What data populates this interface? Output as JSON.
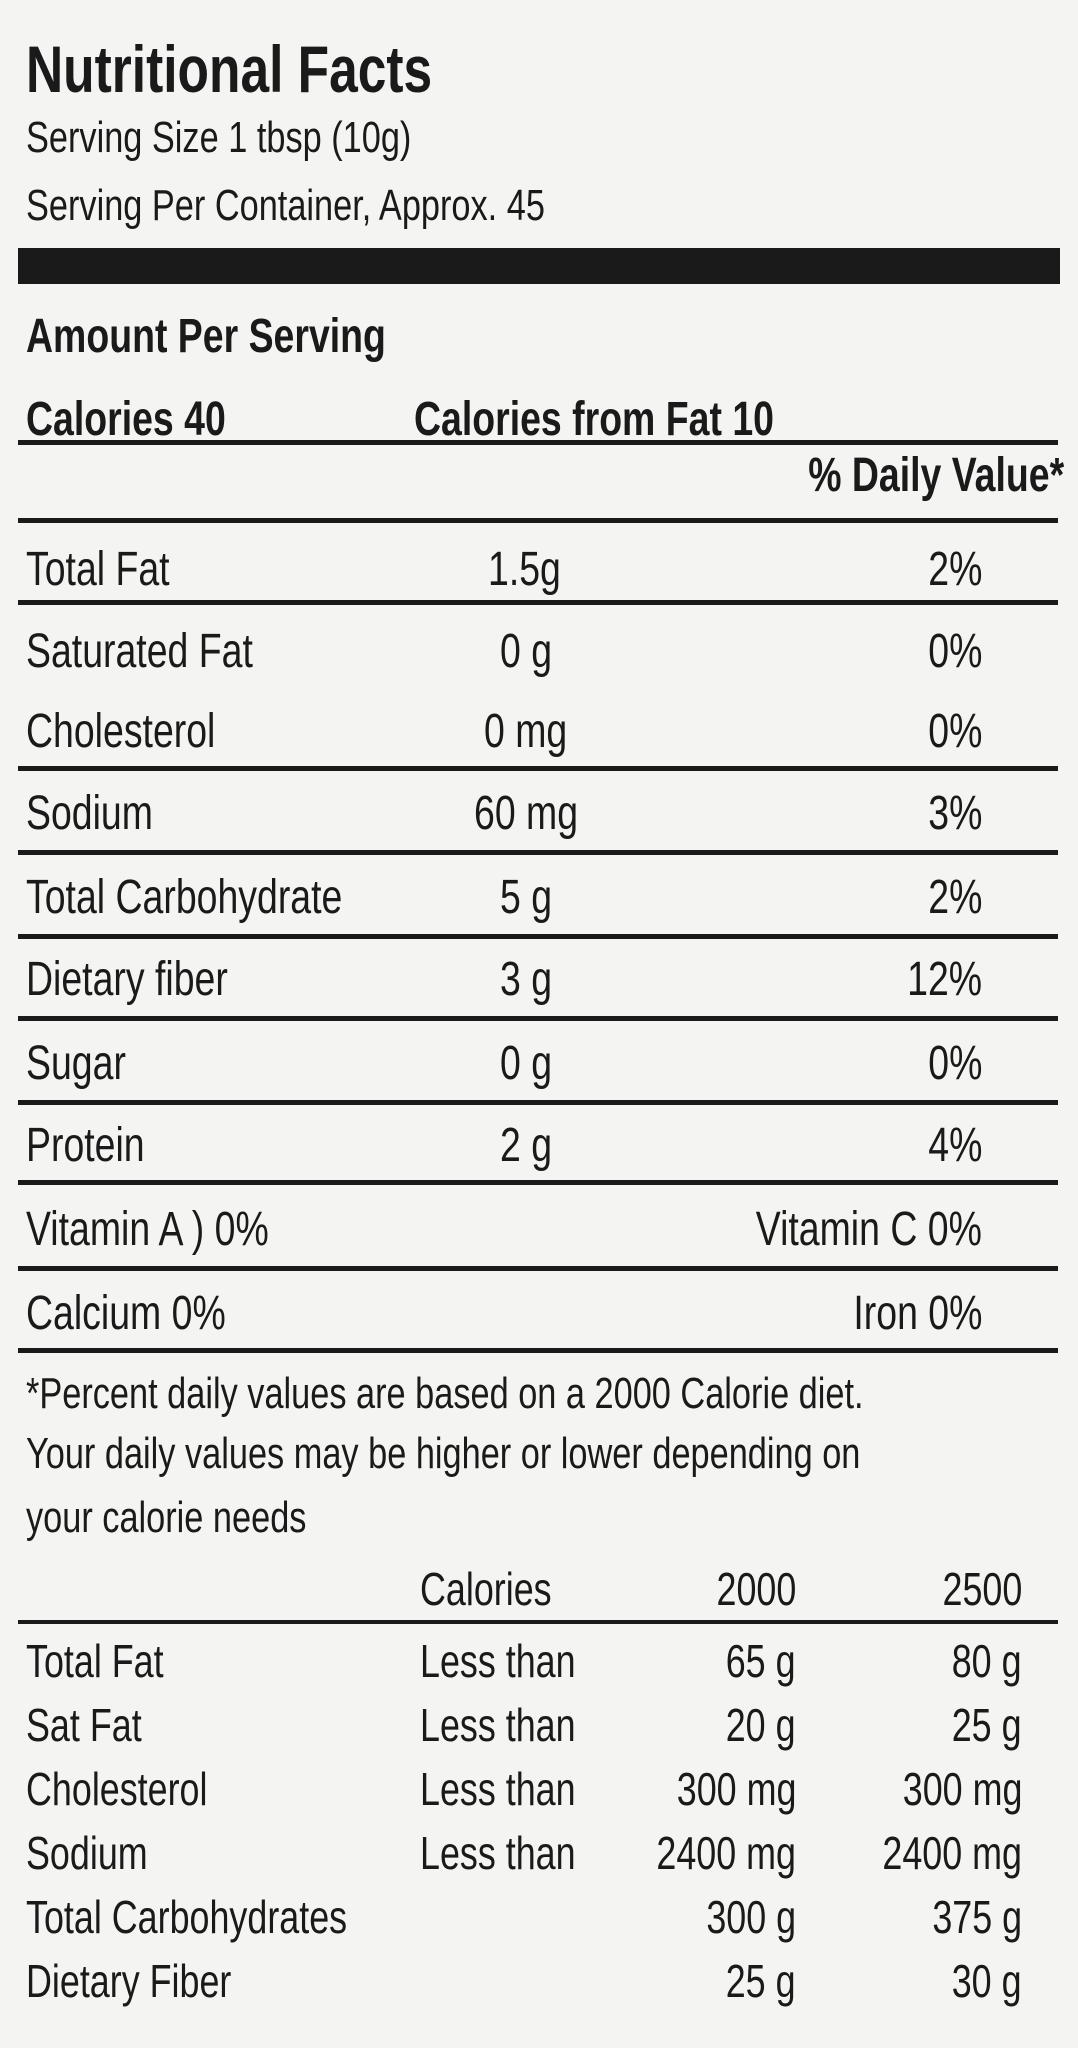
{
  "title": "Nutritional Facts",
  "serving_size": "Serving Size 1 tbsp (10g)",
  "servings_per_container": "Serving Per Container, Approx. 45",
  "amount_per_serving": "Amount Per Serving",
  "calories": "Calories 40",
  "calories_from_fat": "Calories from Fat 10",
  "daily_value_header": "% Daily Value*",
  "nutrients": [
    {
      "name": "Total Fat",
      "amount": "1.5g",
      "dv": "2%"
    },
    {
      "name": "Saturated Fat",
      "amount": "0 g",
      "dv": "0%"
    },
    {
      "name": "Cholesterol",
      "amount": "0 mg",
      "dv": "0%"
    },
    {
      "name": "Sodium",
      "amount": "60 mg",
      "dv": "3%"
    },
    {
      "name": "Total Carbohydrate",
      "amount": "5 g",
      "dv": "2%"
    },
    {
      "name": "Dietary fiber",
      "amount": "3 g",
      "dv": "12%"
    },
    {
      "name": "Sugar",
      "amount": "0 g",
      "dv": "0%"
    },
    {
      "name": "Protein",
      "amount": "2 g",
      "dv": "4%"
    }
  ],
  "vitamins": [
    {
      "left": "Vitamin A ) 0%",
      "right": "Vitamin C 0%"
    },
    {
      "left": "Calcium 0%",
      "right": "Iron 0%"
    }
  ],
  "footnote": [
    "*Percent daily values are based on a 2000 Calorie diet.",
    "Your daily values may be higher or lower depending on",
    "your calorie needs"
  ],
  "reference_table": {
    "headers": [
      "Calories",
      "2000",
      "2500"
    ],
    "rows": [
      {
        "name": "Total Fat",
        "qualifier": "Less than",
        "v2000": "65 g",
        "v2500": "80 g"
      },
      {
        "name": "Sat Fat",
        "qualifier": "Less than",
        "v2000": "20 g",
        "v2500": "25 g"
      },
      {
        "name": "Cholesterol",
        "qualifier": "Less than",
        "v2000": "300 mg",
        "v2500": "300 mg"
      },
      {
        "name": "Sodium",
        "qualifier": "Less than",
        "v2000": "2400 mg",
        "v2500": "2400 mg"
      },
      {
        "name": "Total Carbohydrates",
        "qualifier": "",
        "v2000": "300 g",
        "v2500": "375 g"
      },
      {
        "name": "Dietary Fiber",
        "qualifier": "",
        "v2000": "25 g",
        "v2500": "30 g"
      }
    ]
  }
}
